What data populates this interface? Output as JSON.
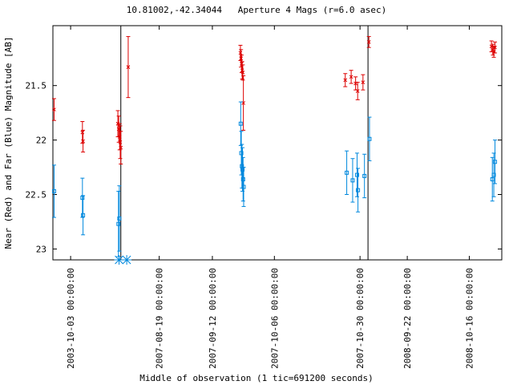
{
  "chart_data": {
    "type": "scatter",
    "title": "10.81002,-42.34044   Aperture 4 Mags (r=6.0 asec)",
    "xlabel": "Middle of observation (1 tic=691200 seconds)",
    "ylabel": "Near (Red) and Far (Blue) Magnitude [AB]",
    "y_axis": {
      "inverted": true,
      "ylim": [
        23.1,
        20.95
      ],
      "ticks": [
        "21.5",
        "22",
        "22.5",
        "23"
      ]
    },
    "x_tick_labels": [
      "2003-10-03 00:00:00",
      "2007-08-19 00:00:00",
      "2007-09-12 00:00:00",
      "2007-10-06 00:00:00",
      "2007-10-30 00:00:00",
      "2008-09-22 00:00:00",
      "2008-10-16 00:00:00"
    ],
    "series": [
      {
        "color": "#dd0000",
        "marker": "x",
        "points": [
          {
            "x": 0.04,
            "y": 21.72,
            "err": 0.1
          },
          {
            "x": 1.0,
            "y": 21.93,
            "err": 0.1
          },
          {
            "x": 1.02,
            "y": 22.01,
            "err": 0.1
          },
          {
            "x": 2.2,
            "y": 21.85,
            "err": 0.12
          },
          {
            "x": 2.23,
            "y": 21.9,
            "err": 0.12
          },
          {
            "x": 2.26,
            "y": 21.97,
            "err": 0.12
          },
          {
            "x": 2.28,
            "y": 22.02,
            "err": 0.15
          },
          {
            "x": 2.3,
            "y": 22.07,
            "err": 0.15
          },
          {
            "x": 2.55,
            "y": 21.33,
            "err": 0.28
          },
          {
            "x": 6.35,
            "y": 21.2,
            "err": 0.07
          },
          {
            "x": 6.37,
            "y": 21.25,
            "err": 0.08
          },
          {
            "x": 6.39,
            "y": 21.3,
            "err": 0.08
          },
          {
            "x": 6.41,
            "y": 21.36,
            "err": 0.08
          },
          {
            "x": 6.43,
            "y": 21.38,
            "err": 0.07
          },
          {
            "x": 6.45,
            "y": 21.66,
            "err": 0.25
          },
          {
            "x": 9.9,
            "y": 21.45,
            "err": 0.06
          },
          {
            "x": 10.1,
            "y": 21.42,
            "err": 0.06
          },
          {
            "x": 10.25,
            "y": 21.48,
            "err": 0.06
          },
          {
            "x": 10.32,
            "y": 21.55,
            "err": 0.08
          },
          {
            "x": 10.5,
            "y": 21.47,
            "err": 0.07
          },
          {
            "x": 10.7,
            "y": 21.1,
            "err": 0.05
          },
          {
            "x": 14.85,
            "y": 21.14,
            "err": 0.05
          },
          {
            "x": 14.9,
            "y": 21.17,
            "err": 0.05
          },
          {
            "x": 14.93,
            "y": 21.19,
            "err": 0.05
          },
          {
            "x": 14.97,
            "y": 21.15,
            "err": 0.05
          }
        ]
      },
      {
        "color": "#0088dd",
        "marker": "square",
        "points": [
          {
            "x": 0.04,
            "y": 22.47,
            "err": 0.24
          },
          {
            "x": 1.0,
            "y": 22.53,
            "err": 0.18
          },
          {
            "x": 1.02,
            "y": 22.69,
            "err": 0.18
          },
          {
            "x": 2.22,
            "y": 22.77,
            "err": 0.3
          },
          {
            "x": 2.25,
            "y": 22.72,
            "err": 0.3
          },
          {
            "x": 6.36,
            "y": 21.85,
            "err": 0.2
          },
          {
            "x": 6.38,
            "y": 22.12,
            "err": 0.2
          },
          {
            "x": 6.4,
            "y": 22.24,
            "err": 0.2
          },
          {
            "x": 6.42,
            "y": 22.27,
            "err": 0.2
          },
          {
            "x": 6.44,
            "y": 22.36,
            "err": 0.2
          },
          {
            "x": 6.46,
            "y": 22.43,
            "err": 0.18
          },
          {
            "x": 9.95,
            "y": 22.3,
            "err": 0.2
          },
          {
            "x": 10.15,
            "y": 22.37,
            "err": 0.2
          },
          {
            "x": 10.3,
            "y": 22.32,
            "err": 0.2
          },
          {
            "x": 10.33,
            "y": 22.46,
            "err": 0.2
          },
          {
            "x": 10.55,
            "y": 22.33,
            "err": 0.2
          },
          {
            "x": 10.72,
            "y": 21.99,
            "err": 0.2
          },
          {
            "x": 14.88,
            "y": 22.36,
            "err": 0.2
          },
          {
            "x": 14.93,
            "y": 22.32,
            "err": 0.2
          },
          {
            "x": 14.97,
            "y": 22.2,
            "err": 0.2
          }
        ]
      }
    ],
    "lower_limit_markers": {
      "color": "#0088dd",
      "marker": "asterisk",
      "points": [
        {
          "x": 2.24,
          "y": 23.1
        },
        {
          "x": 2.5,
          "y": 23.1
        }
      ]
    },
    "vertical_lines": [
      2.3,
      10.67
    ],
    "xlim": [
      0,
      15.2
    ]
  }
}
